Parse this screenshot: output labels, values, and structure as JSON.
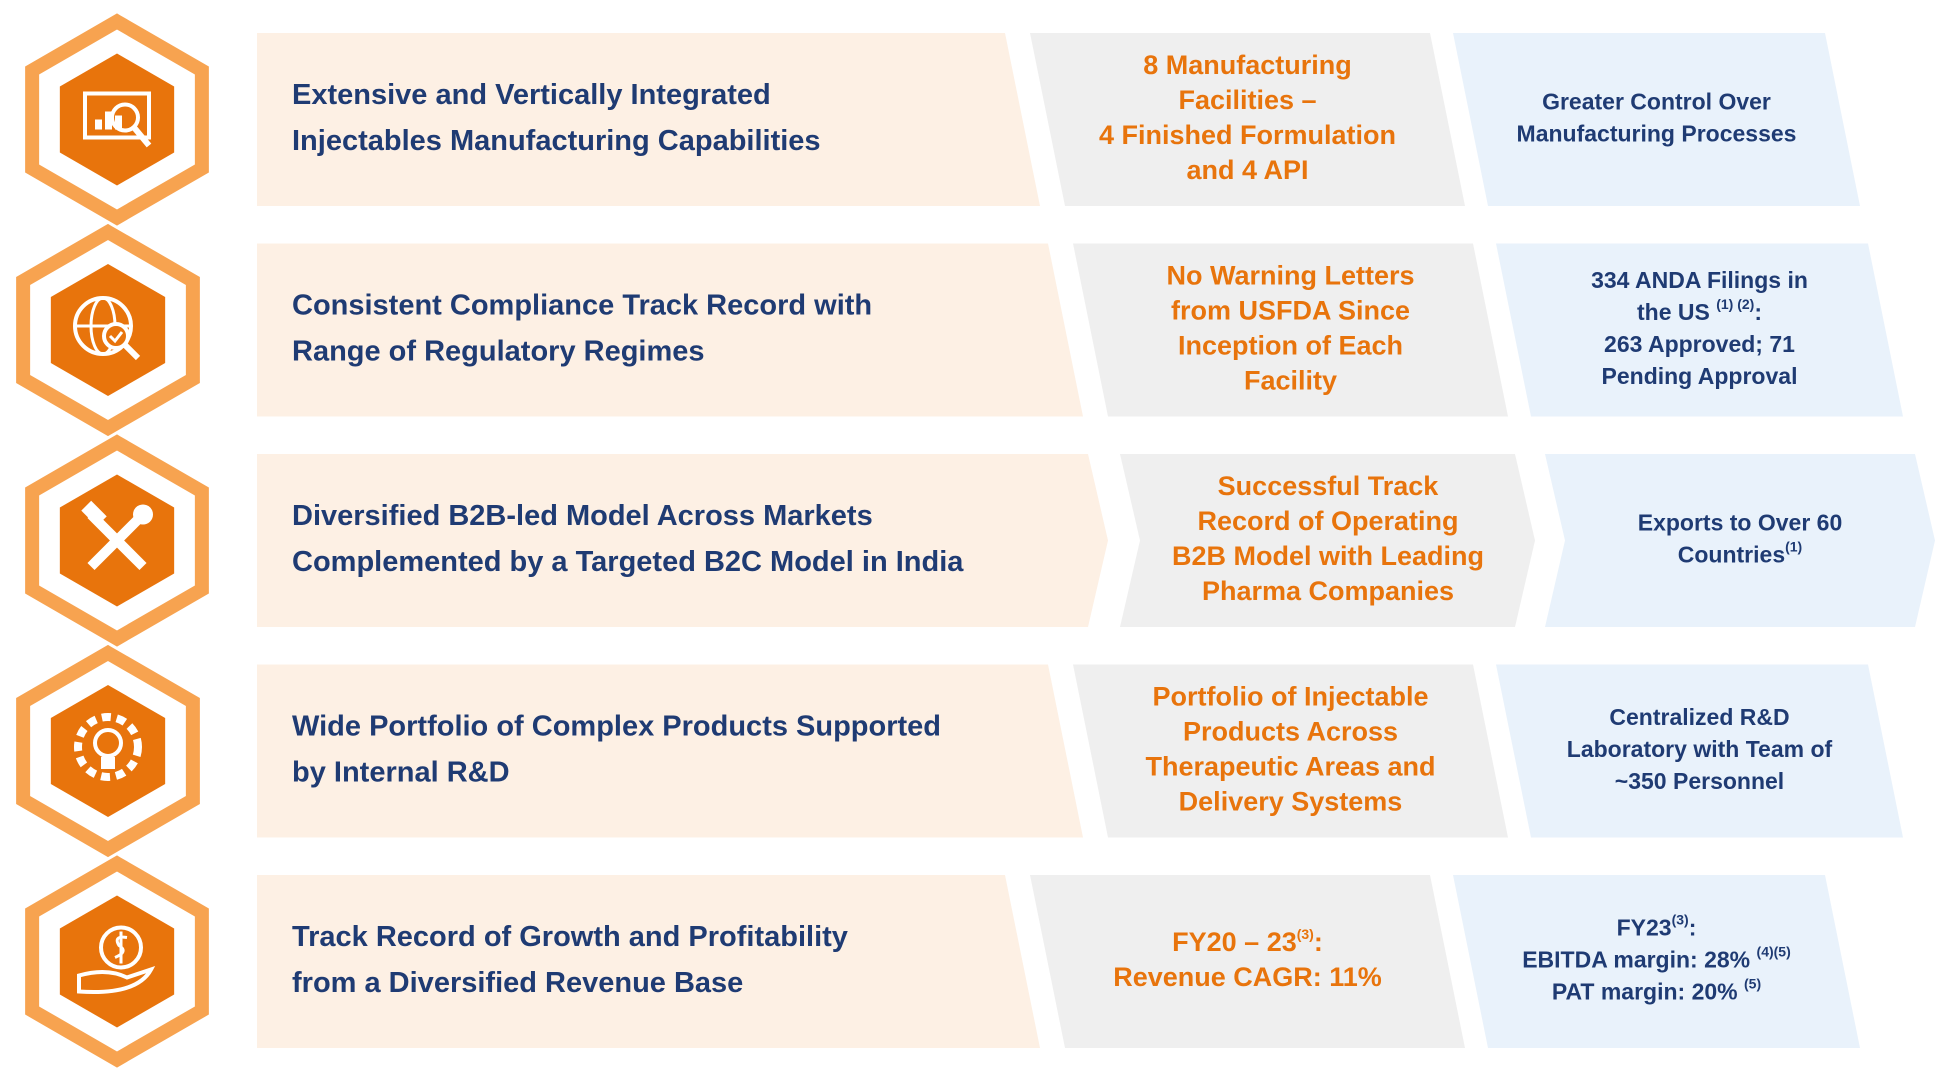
{
  "rows": [
    {
      "main": [
        "Extensive and Vertically Integrated",
        "Injectables Manufacturing Capabilities"
      ],
      "highlight": [
        [
          "8 Manufacturing"
        ],
        [
          "Facilities –"
        ],
        [
          "4 Finished Formulation"
        ],
        [
          "and 4 API"
        ]
      ],
      "outcome": [
        [
          "Greater Control Over"
        ],
        [
          "Manufacturing Processes"
        ]
      ]
    },
    {
      "main": [
        "Consistent Compliance Track Record with",
        "Range of Regulatory Regimes"
      ],
      "highlight": [
        [
          "No Warning Letters"
        ],
        [
          "from USFDA Since"
        ],
        [
          "Inception of Each"
        ],
        [
          "Facility"
        ]
      ],
      "outcome": [
        [
          "334 ANDA Filings in"
        ],
        [
          "the US ",
          {
            "sup": "(1) (2)"
          },
          ":"
        ],
        [
          "263 Approved; 71"
        ],
        [
          "Pending Approval"
        ]
      ]
    },
    {
      "main": [
        "Diversified B2B-led Model Across Markets",
        "Complemented by a Targeted B2C Model in India"
      ],
      "highlight": [
        [
          "Successful Track"
        ],
        [
          "Record of Operating"
        ],
        [
          "B2B Model with Leading"
        ],
        [
          "Pharma Companies"
        ]
      ],
      "outcome": [
        [
          "Exports to Over 60"
        ],
        [
          "Countries",
          {
            "sup": "(1)"
          }
        ]
      ]
    },
    {
      "main": [
        "Wide Portfolio of Complex Products Supported",
        "by Internal R&D"
      ],
      "highlight": [
        [
          "Portfolio of Injectable"
        ],
        [
          "Products Across"
        ],
        [
          "Therapeutic Areas and"
        ],
        [
          "Delivery Systems"
        ]
      ],
      "outcome": [
        [
          "Centralized R&D"
        ],
        [
          "Laboratory with Team of"
        ],
        [
          "~350 Personnel"
        ]
      ]
    },
    {
      "main": [
        "Track Record of Growth and Profitability",
        "from a Diversified Revenue Base"
      ],
      "highlight": [
        [
          "FY20 – 23",
          {
            "sup": "(3)"
          },
          ":"
        ],
        [
          "Revenue CAGR: 11%"
        ]
      ],
      "outcome": [
        [
          "FY23",
          {
            "sup": "(3)"
          },
          ":"
        ],
        [
          "EBITDA margin: 28% ",
          {
            "sup": "(4)(5)"
          }
        ],
        [
          "PAT margin: 20% ",
          {
            "sup": "(5)"
          }
        ]
      ]
    }
  ]
}
